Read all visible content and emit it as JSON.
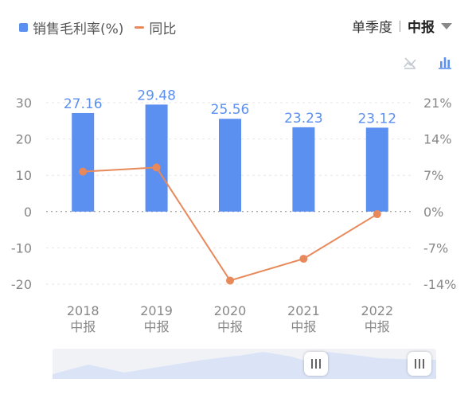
{
  "legend": {
    "bar_label": "销售毛利率(%)",
    "line_label": "同比"
  },
  "period": {
    "option": "单季度",
    "selected": "中报"
  },
  "icons": {
    "line_toggle": "line-chart-off-icon",
    "bar_toggle": "bar-chart-icon"
  },
  "colors": {
    "bar": "#5b8ff0",
    "line": "#e8895b",
    "value_label": "#5b8ff0",
    "axis_text": "#888888"
  },
  "chart_data": {
    "type": "bar",
    "categories": [
      "2018\n中报",
      "2019\n中报",
      "2020\n中报",
      "2021\n中报",
      "2022\n中报"
    ],
    "series": [
      {
        "name": "销售毛利率(%)",
        "type": "bar",
        "axis": "left",
        "values": [
          27.16,
          29.48,
          25.56,
          23.23,
          23.12
        ]
      },
      {
        "name": "同比",
        "type": "line",
        "axis": "right",
        "values": [
          7.7,
          8.5,
          -13.3,
          -9.1,
          -0.5
        ]
      }
    ],
    "data_labels": [
      "27.16",
      "29.48",
      "25.56",
      "23.23",
      "23.12"
    ],
    "y_left": {
      "min": -20,
      "max": 30,
      "ticks": [
        "30",
        "20",
        "10",
        "0",
        "-10",
        "-20"
      ]
    },
    "y_right": {
      "min": -14,
      "max": 21,
      "ticks": [
        "21%",
        "14%",
        "7%",
        "0%",
        "-7%",
        "-14%"
      ]
    },
    "zero_line": "dotted"
  }
}
